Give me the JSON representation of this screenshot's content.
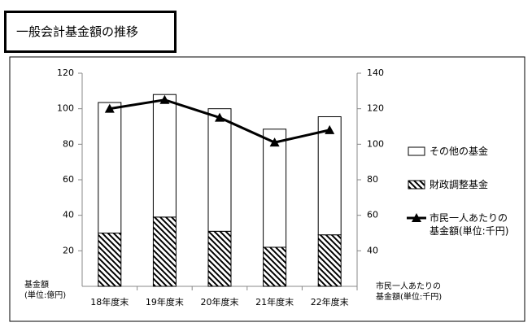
{
  "title": "一般会計基金額の推移",
  "chart_data": {
    "type": "bar",
    "stacked": true,
    "categories": [
      "18年度末",
      "19年度末",
      "20年度末",
      "21年度末",
      "22年度末"
    ],
    "y_label": "基金額\n(単位:億円)",
    "y2_label": "市民一人あたりの\n基金額(単位:千円)",
    "ylim": [
      0,
      120
    ],
    "yticks": [
      20,
      40,
      60,
      80,
      100,
      120
    ],
    "y2lim": [
      20,
      140
    ],
    "y2ticks": [
      40,
      60,
      80,
      100,
      120,
      140
    ],
    "series": [
      {
        "name": "その他の基金",
        "color": "#ffffff",
        "values": [
          73.5,
          69,
          69,
          66.5,
          66.5
        ]
      },
      {
        "name": "財政調整基金",
        "color": "#000000",
        "pattern": "hatch",
        "values": [
          30,
          39,
          31,
          22,
          29
        ]
      },
      {
        "name": "市民一人あたりの\n基金額(単位:千円)",
        "type": "line",
        "axis": "y2",
        "color": "#000000",
        "values": [
          120,
          125,
          115,
          101,
          108
        ]
      }
    ],
    "legend": "right"
  }
}
